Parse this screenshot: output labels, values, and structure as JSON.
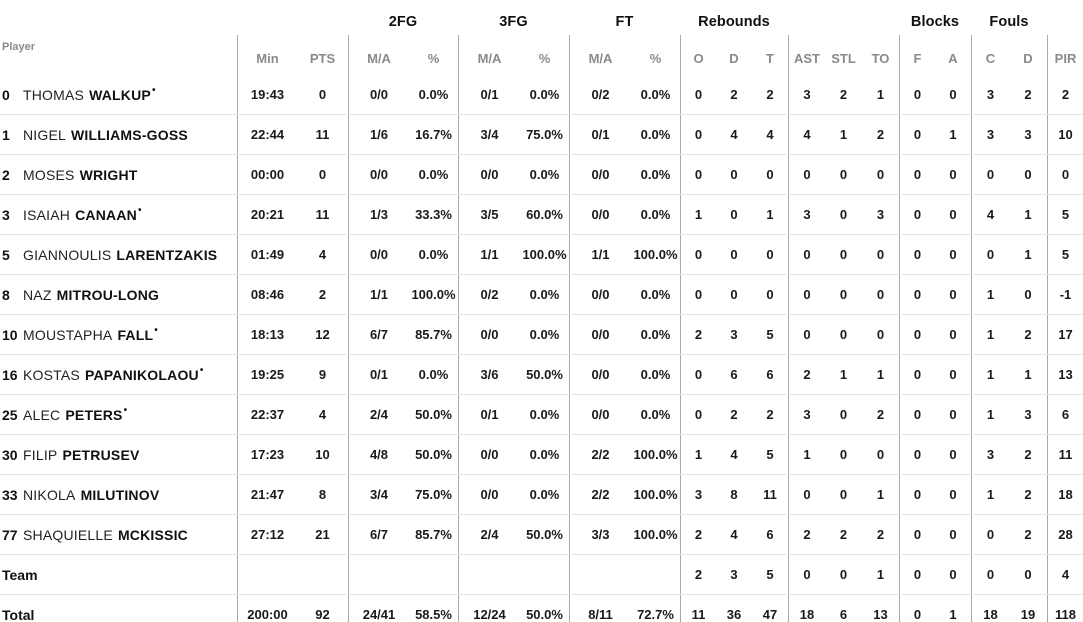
{
  "table": {
    "player_col_label": "Player",
    "starter_mark": "•",
    "group_headers": [
      "2FG",
      "3FG",
      "FT",
      "Rebounds",
      "Blocks",
      "Fouls"
    ],
    "sub_headers": [
      "Min",
      "PTS",
      "M/A",
      "%",
      "M/A",
      "%",
      "M/A",
      "%",
      "O",
      "D",
      "T",
      "AST",
      "STL",
      "TO",
      "F",
      "A",
      "C",
      "D",
      "PIR"
    ],
    "colors": {
      "header_text": "#8a8a8a",
      "data_text": "#1a1a1a",
      "group_divider": "#a8a8a8",
      "row_line": "#e4e4e4",
      "background": "#ffffff"
    },
    "rows": [
      {
        "num": "0",
        "first": "THOMAS",
        "last": "WALKUP",
        "starter": true,
        "stats": [
          "19:43",
          "0",
          "0/0",
          "0.0%",
          "0/1",
          "0.0%",
          "0/2",
          "0.0%",
          "0",
          "2",
          "2",
          "3",
          "2",
          "1",
          "0",
          "0",
          "3",
          "2",
          "2"
        ]
      },
      {
        "num": "1",
        "first": "NIGEL",
        "last": "WILLIAMS-GOSS",
        "starter": false,
        "stats": [
          "22:44",
          "11",
          "1/6",
          "16.7%",
          "3/4",
          "75.0%",
          "0/1",
          "0.0%",
          "0",
          "4",
          "4",
          "4",
          "1",
          "2",
          "0",
          "1",
          "3",
          "3",
          "10"
        ]
      },
      {
        "num": "2",
        "first": "MOSES",
        "last": "WRIGHT",
        "starter": false,
        "stats": [
          "00:00",
          "0",
          "0/0",
          "0.0%",
          "0/0",
          "0.0%",
          "0/0",
          "0.0%",
          "0",
          "0",
          "0",
          "0",
          "0",
          "0",
          "0",
          "0",
          "0",
          "0",
          "0"
        ]
      },
      {
        "num": "3",
        "first": "ISAIAH",
        "last": "CANAAN",
        "starter": true,
        "stats": [
          "20:21",
          "11",
          "1/3",
          "33.3%",
          "3/5",
          "60.0%",
          "0/0",
          "0.0%",
          "1",
          "0",
          "1",
          "3",
          "0",
          "3",
          "0",
          "0",
          "4",
          "1",
          "5"
        ]
      },
      {
        "num": "5",
        "first": "GIANNOULIS",
        "last": "LARENTZAKIS",
        "starter": false,
        "stats": [
          "01:49",
          "4",
          "0/0",
          "0.0%",
          "1/1",
          "100.0%",
          "1/1",
          "100.0%",
          "0",
          "0",
          "0",
          "0",
          "0",
          "0",
          "0",
          "0",
          "0",
          "1",
          "5"
        ]
      },
      {
        "num": "8",
        "first": "NAZ",
        "last": "MITROU-LONG",
        "starter": false,
        "stats": [
          "08:46",
          "2",
          "1/1",
          "100.0%",
          "0/2",
          "0.0%",
          "0/0",
          "0.0%",
          "0",
          "0",
          "0",
          "0",
          "0",
          "0",
          "0",
          "0",
          "1",
          "0",
          "-1"
        ]
      },
      {
        "num": "10",
        "first": "MOUSTAPHA",
        "last": "FALL",
        "starter": true,
        "stats": [
          "18:13",
          "12",
          "6/7",
          "85.7%",
          "0/0",
          "0.0%",
          "0/0",
          "0.0%",
          "2",
          "3",
          "5",
          "0",
          "0",
          "0",
          "0",
          "0",
          "1",
          "2",
          "17"
        ]
      },
      {
        "num": "16",
        "first": "KOSTAS",
        "last": "PAPANIKOLAOU",
        "starter": true,
        "stats": [
          "19:25",
          "9",
          "0/1",
          "0.0%",
          "3/6",
          "50.0%",
          "0/0",
          "0.0%",
          "0",
          "6",
          "6",
          "2",
          "1",
          "1",
          "0",
          "0",
          "1",
          "1",
          "13"
        ]
      },
      {
        "num": "25",
        "first": "ALEC",
        "last": "PETERS",
        "starter": true,
        "stats": [
          "22:37",
          "4",
          "2/4",
          "50.0%",
          "0/1",
          "0.0%",
          "0/0",
          "0.0%",
          "0",
          "2",
          "2",
          "3",
          "0",
          "2",
          "0",
          "0",
          "1",
          "3",
          "6"
        ]
      },
      {
        "num": "30",
        "first": "FILIP",
        "last": "PETRUSEV",
        "starter": false,
        "stats": [
          "17:23",
          "10",
          "4/8",
          "50.0%",
          "0/0",
          "0.0%",
          "2/2",
          "100.0%",
          "1",
          "4",
          "5",
          "1",
          "0",
          "0",
          "0",
          "0",
          "3",
          "2",
          "11"
        ]
      },
      {
        "num": "33",
        "first": "NIKOLA",
        "last": "MILUTINOV",
        "starter": false,
        "stats": [
          "21:47",
          "8",
          "3/4",
          "75.0%",
          "0/0",
          "0.0%",
          "2/2",
          "100.0%",
          "3",
          "8",
          "11",
          "0",
          "0",
          "1",
          "0",
          "0",
          "1",
          "2",
          "18"
        ]
      },
      {
        "num": "77",
        "first": "SHAQUIELLE",
        "last": "MCKISSIC",
        "starter": false,
        "stats": [
          "27:12",
          "21",
          "6/7",
          "85.7%",
          "2/4",
          "50.0%",
          "3/3",
          "100.0%",
          "2",
          "4",
          "6",
          "2",
          "2",
          "2",
          "0",
          "0",
          "0",
          "2",
          "28"
        ]
      },
      {
        "label": "Team",
        "stats": [
          "",
          "",
          "",
          "",
          "",
          "",
          "",
          "",
          "2",
          "3",
          "5",
          "0",
          "0",
          "1",
          "0",
          "0",
          "0",
          "0",
          "4"
        ]
      },
      {
        "label": "Total",
        "stats": [
          "200:00",
          "92",
          "24/41",
          "58.5%",
          "12/24",
          "50.0%",
          "8/11",
          "72.7%",
          "11",
          "36",
          "47",
          "18",
          "6",
          "13",
          "0",
          "1",
          "18",
          "19",
          "118"
        ]
      }
    ]
  }
}
